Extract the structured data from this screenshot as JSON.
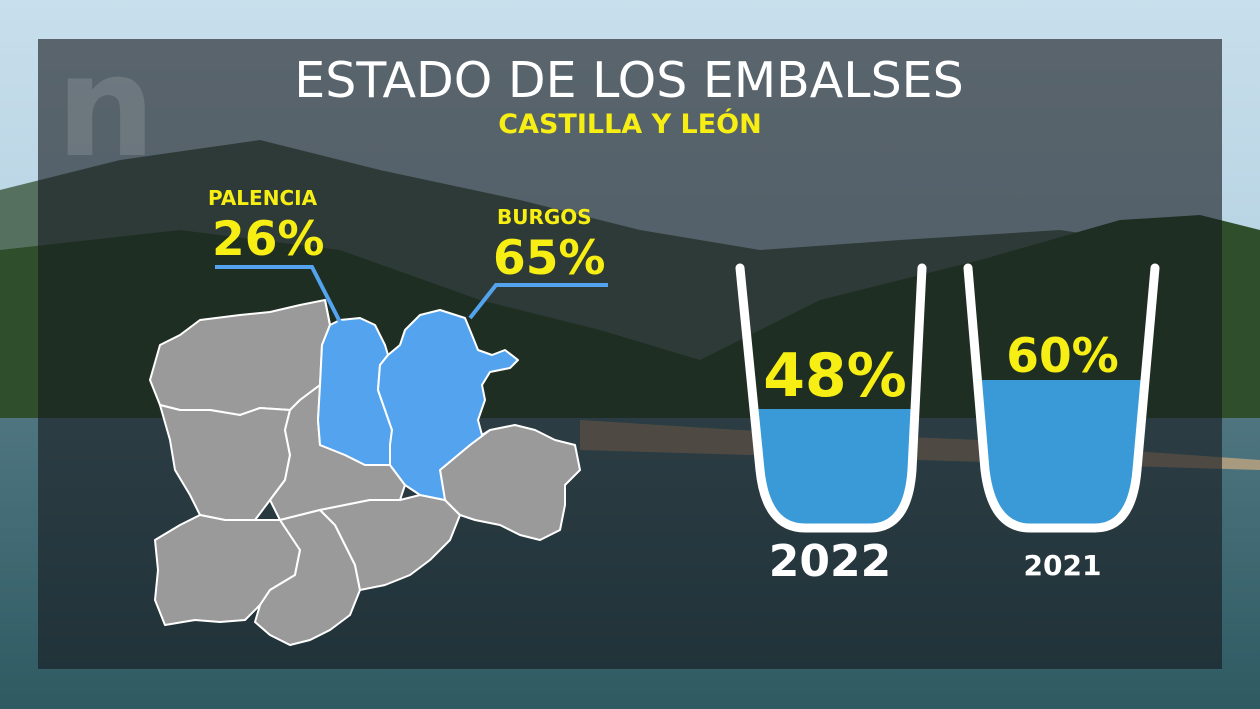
{
  "header": {
    "title": "ESTADO DE LOS EMBALSES",
    "subtitle": "CASTILLA Y LEÓN"
  },
  "provinces": [
    {
      "name": "PALENCIA",
      "percent": "26%"
    },
    {
      "name": "BURGOS",
      "percent": "65%"
    }
  ],
  "reservoirs": [
    {
      "year": "2022",
      "percent": "48%",
      "level": 0.48
    },
    {
      "year": "2021",
      "percent": "60%",
      "level": 0.6
    }
  ],
  "colors": {
    "accent_yellow": "#f7ef14",
    "highlight_blue": "#54a3ee",
    "region_gray": "#9a9a9a",
    "water_blue": "#3a9ad8"
  },
  "logo_icon": "n-logo-icon"
}
